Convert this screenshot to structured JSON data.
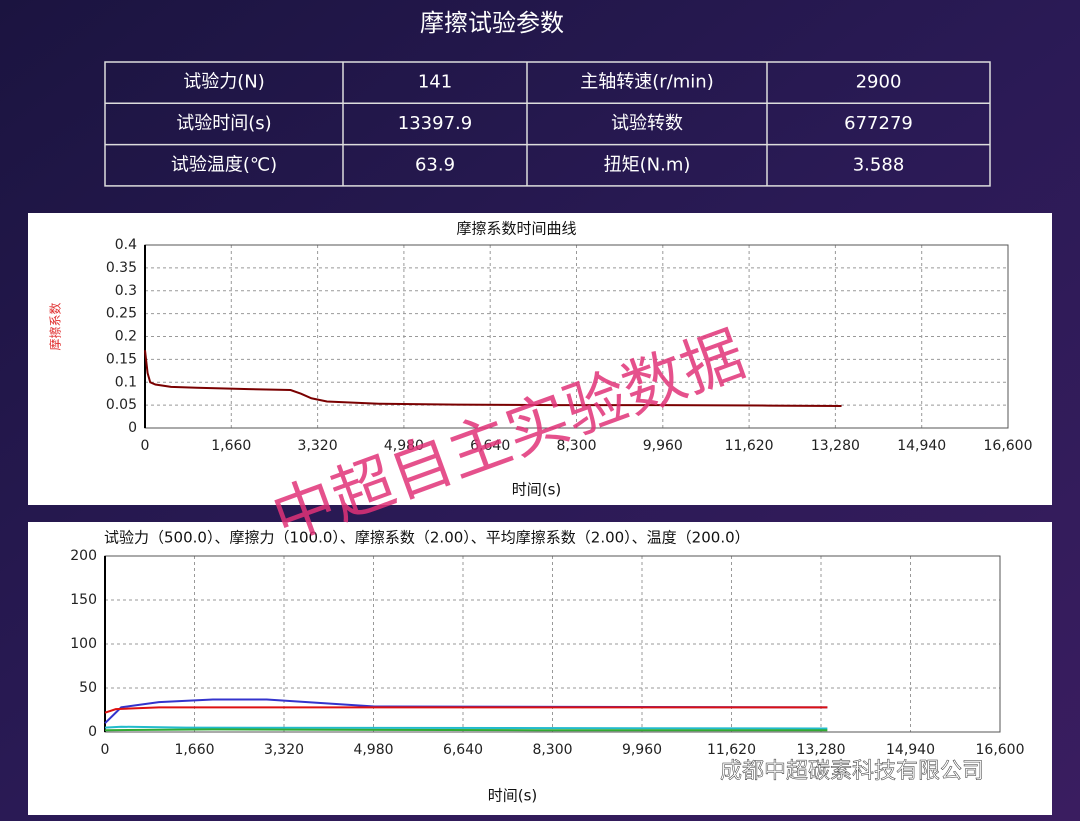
{
  "header": {
    "title": "摩擦试验参数"
  },
  "table": {
    "rows": [
      [
        "试验力(N)",
        "141",
        "主轴转速(r/min)",
        "2900"
      ],
      [
        "试验时间(s)",
        "13397.9",
        "试验转数",
        "677279"
      ],
      [
        "试验温度(℃)",
        "63.9",
        "扭矩(N.m)",
        "3.588"
      ]
    ]
  },
  "watermark": "中超自主实验数据",
  "footer": "成都中超碳素科技有限公司",
  "chart_data": [
    {
      "type": "line",
      "title": "摩擦系数时间曲线",
      "y_label": "摩擦系数",
      "x_label": "时间(s)",
      "xlim": [
        0,
        16600
      ],
      "ylim": [
        0,
        0.4
      ],
      "xticks": [
        0,
        {
          "value": 1660,
          "label": "1,660"
        },
        {
          "value": 3320,
          "label": "3,320"
        },
        {
          "value": 4980,
          "label": "4,980"
        },
        {
          "value": 6640,
          "label": "6,640"
        },
        {
          "value": 8300,
          "label": "8,300"
        },
        {
          "value": 9960,
          "label": "9,960"
        },
        {
          "value": 11620,
          "label": "11,620"
        },
        {
          "value": 13280,
          "label": "13,280"
        },
        {
          "value": 14940,
          "label": "14,940"
        },
        {
          "value": 16600,
          "label": "16,600"
        }
      ],
      "yticks": [
        0,
        0.05,
        0.1,
        0.15,
        0.2,
        0.25,
        0.3,
        0.35,
        0.4
      ],
      "grid": true,
      "series": [
        {
          "color": "#7a0000",
          "x": [
            0,
            50,
            100,
            200,
            500,
            1000,
            2000,
            2800,
            3000,
            3200,
            3500,
            4500,
            6000,
            8000,
            10000,
            12000,
            13398
          ],
          "values": [
            0.17,
            0.12,
            0.1,
            0.095,
            0.09,
            0.088,
            0.085,
            0.083,
            0.075,
            0.065,
            0.058,
            0.053,
            0.051,
            0.05,
            0.05,
            0.049,
            0.048
          ]
        }
      ]
    },
    {
      "type": "line",
      "legend_text": "试验力（500.0）、摩擦力（100.0）、摩擦系数（2.00）、平均摩擦系数（2.00）、温度（200.0）",
      "x_label": "时间(s)",
      "xlim": [
        0,
        16600
      ],
      "ylim": [
        0,
        200
      ],
      "xticks": [
        0,
        {
          "value": 1660,
          "label": "1,660"
        },
        {
          "value": 3320,
          "label": "3,320"
        },
        {
          "value": 4980,
          "label": "4,980"
        },
        {
          "value": 6640,
          "label": "6,640"
        },
        {
          "value": 8300,
          "label": "8,300"
        },
        {
          "value": 9960,
          "label": "9,960"
        },
        {
          "value": 11620,
          "label": "11,620"
        },
        {
          "value": 13280,
          "label": "13,280"
        },
        {
          "value": 14940,
          "label": "14,940"
        },
        {
          "value": 16600,
          "label": "16,600"
        }
      ],
      "yticks": [
        0,
        50,
        100,
        150,
        200
      ],
      "grid": true,
      "series": [
        {
          "color": "#3333cc",
          "x": [
            0,
            300,
            1000,
            2000,
            3000,
            4000,
            5000,
            13398
          ],
          "values": [
            10,
            28,
            34,
            37,
            37,
            33,
            29,
            28
          ]
        },
        {
          "color": "#dd1111",
          "x": [
            0,
            200,
            1000,
            5000,
            13398
          ],
          "values": [
            22,
            26,
            28,
            28,
            28
          ]
        },
        {
          "color": "#22bbcc",
          "x": [
            0,
            300,
            1500,
            13398
          ],
          "values": [
            5,
            6,
            5,
            4
          ]
        },
        {
          "color": "#33aa33",
          "x": [
            0,
            2000,
            8000,
            13398
          ],
          "values": [
            2,
            3,
            2,
            2
          ]
        }
      ]
    }
  ]
}
